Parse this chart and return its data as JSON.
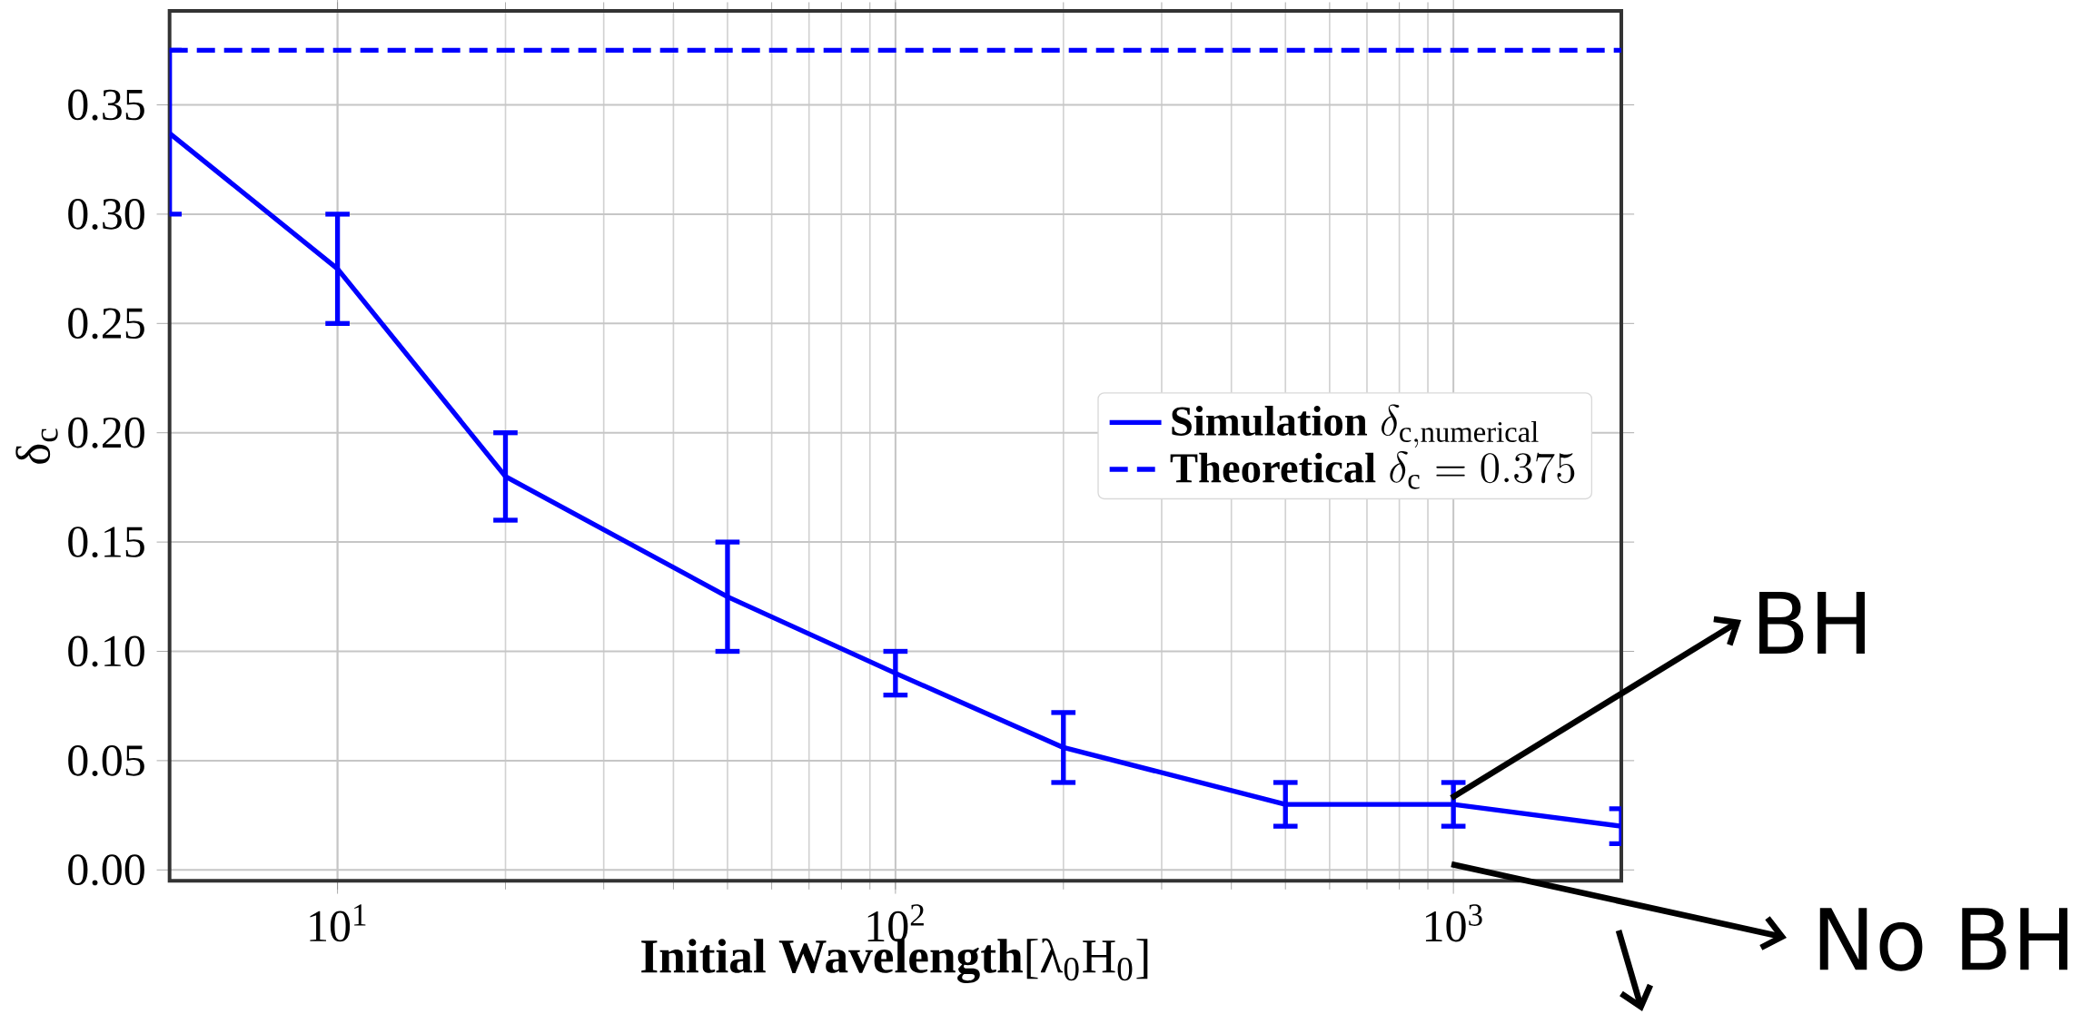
{
  "chart_data": {
    "type": "line",
    "xlabel": "**Initial Wavelength**[λ$_{0}$H$_{0}$]",
    "ylabel": "δ$_{c}$",
    "log": "x",
    "xlim": [
      5,
      2000
    ],
    "ylim": [
      -0.005,
      0.393
    ],
    "xticks": [
      {
        "value": 10,
        "label": "10$^{1}$"
      },
      {
        "value": 100,
        "label": "10$^{2}$"
      },
      {
        "value": 1000,
        "label": "10$^{3}$"
      }
    ],
    "yticks": [
      {
        "value": 0,
        "label": "0.00"
      },
      {
        "value": 0.05,
        "label": "0.05"
      },
      {
        "value": 0.1,
        "label": "0.10"
      },
      {
        "value": 0.15,
        "label": "0.15"
      },
      {
        "value": 0.2,
        "label": "0.20"
      },
      {
        "value": 0.25,
        "label": "0.25"
      },
      {
        "value": 0.3,
        "label": "0.30"
      },
      {
        "value": 0.35,
        "label": "0.35"
      }
    ],
    "grid": true,
    "legend": "right",
    "series": [
      {
        "name": "\\textbf{Simulation}\\;\\delta_{\\mathrm{c,numerical}}",
        "color": "#0000ff",
        "line_style": "solid",
        "x": [
          5,
          10,
          20,
          50,
          100,
          200,
          500,
          1000,
          2000
        ],
        "values": [
          0.337,
          0.275,
          0.18,
          0.125,
          0.09,
          0.056,
          0.03,
          0.03,
          0.02
        ],
        "errors": [
          [
            0.3,
            0.375
          ],
          [
            0.25,
            0.3
          ],
          [
            0.16,
            0.2
          ],
          [
            0.1,
            0.15
          ],
          [
            0.08,
            0.1
          ],
          [
            0.04,
            0.072
          ],
          [
            0.02,
            0.04
          ],
          [
            0.02,
            0.04
          ],
          [
            0.012,
            0.028
          ]
        ]
      },
      {
        "name": "\\textbf{Theoretical}\\;\\delta_{\\mathrm{c}} = 0.375",
        "color": "#0000ff",
        "line_style": "dashed",
        "x": [
          5,
          2000
        ],
        "values": [
          0.375,
          0.375
        ]
      }
    ],
    "annotations": [
      "BH",
      "No BH"
    ]
  }
}
